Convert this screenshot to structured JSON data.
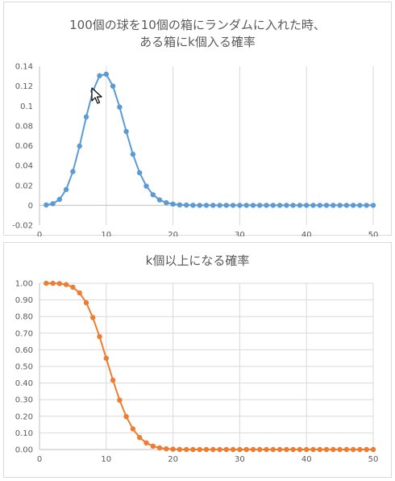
{
  "chart_data": [
    {
      "type": "line",
      "title": "100個の球を10個の箱にランダムに入れた時、\nある箱にk個入る確率",
      "xlabel": "",
      "ylabel": "",
      "xlim": [
        0,
        50
      ],
      "ylim": [
        -0.02,
        0.14
      ],
      "x_ticks": [
        0,
        10,
        20,
        30,
        40,
        50
      ],
      "y_ticks": [
        -0.02,
        0,
        0.02,
        0.04,
        0.06,
        0.08,
        0.1,
        0.12,
        0.14
      ],
      "y_tick_labels": [
        "-0.02",
        "0",
        "0.02",
        "0.04",
        "0.06",
        "0.08",
        "0.1",
        "0.12",
        "0.14"
      ],
      "grid": "vertical",
      "legend": "none",
      "color": "#5B9BD5",
      "series": [
        {
          "x": [
            1,
            2,
            3,
            4,
            5,
            6,
            7,
            8,
            9,
            10,
            11,
            12,
            13,
            14,
            15,
            16,
            17,
            18,
            19,
            20,
            21,
            22,
            23,
            24,
            25,
            26,
            27,
            28,
            29,
            30,
            31,
            32,
            33,
            34,
            35,
            36,
            37,
            38,
            39,
            40,
            41,
            42,
            43,
            44,
            45,
            46,
            47,
            48,
            49,
            50
          ],
          "values": [
            0.0003,
            0.0016,
            0.0059,
            0.0159,
            0.0339,
            0.0596,
            0.0889,
            0.1148,
            0.1304,
            0.1319,
            0.1199,
            0.0988,
            0.0743,
            0.0513,
            0.0327,
            0.0193,
            0.0106,
            0.0054,
            0.0026,
            0.0012,
            0.0005,
            0.0002,
            0.0001,
            0,
            0,
            0,
            0,
            0,
            0,
            0,
            0,
            0,
            0,
            0,
            0,
            0,
            0,
            0,
            0,
            0,
            0,
            0,
            0,
            0,
            0,
            0,
            0,
            0,
            0,
            0
          ]
        }
      ]
    },
    {
      "type": "line",
      "title": "k個以上になる確率",
      "xlabel": "",
      "ylabel": "",
      "xlim": [
        0,
        50
      ],
      "ylim": [
        0,
        1
      ],
      "x_ticks": [
        0,
        10,
        20,
        30,
        40,
        50
      ],
      "y_ticks": [
        0,
        0.1,
        0.2,
        0.3,
        0.4,
        0.5,
        0.6,
        0.7,
        0.8,
        0.9,
        1
      ],
      "y_tick_labels": [
        "0.00",
        "0.10",
        "0.20",
        "0.30",
        "0.40",
        "0.50",
        "0.60",
        "0.70",
        "0.80",
        "0.90",
        "1.00"
      ],
      "grid": "both",
      "legend": "none",
      "color": "#ED7D31",
      "series": [
        {
          "x": [
            1,
            2,
            3,
            4,
            5,
            6,
            7,
            8,
            9,
            10,
            11,
            12,
            13,
            14,
            15,
            16,
            17,
            18,
            19,
            20,
            21,
            22,
            23,
            24,
            25,
            26,
            27,
            28,
            29,
            30,
            31,
            32,
            33,
            34,
            35,
            36,
            37,
            38,
            39,
            40,
            41,
            42,
            43,
            44,
            45,
            46,
            47,
            48,
            49,
            50
          ],
          "values": [
            1.0,
            0.9997,
            0.9981,
            0.9922,
            0.9763,
            0.9424,
            0.8828,
            0.7939,
            0.6791,
            0.5487,
            0.4168,
            0.2969,
            0.1981,
            0.1238,
            0.0725,
            0.0398,
            0.0205,
            0.0099,
            0.0045,
            0.0019,
            0.0007,
            0.0002,
            0.0001,
            0,
            0,
            0,
            0,
            0,
            0,
            0,
            0,
            0,
            0,
            0,
            0,
            0,
            0,
            0,
            0,
            0,
            0,
            0,
            0,
            0,
            0,
            0,
            0,
            0,
            0,
            0
          ]
        }
      ]
    }
  ],
  "cursor": {
    "icon": "mouse-pointer-icon"
  }
}
